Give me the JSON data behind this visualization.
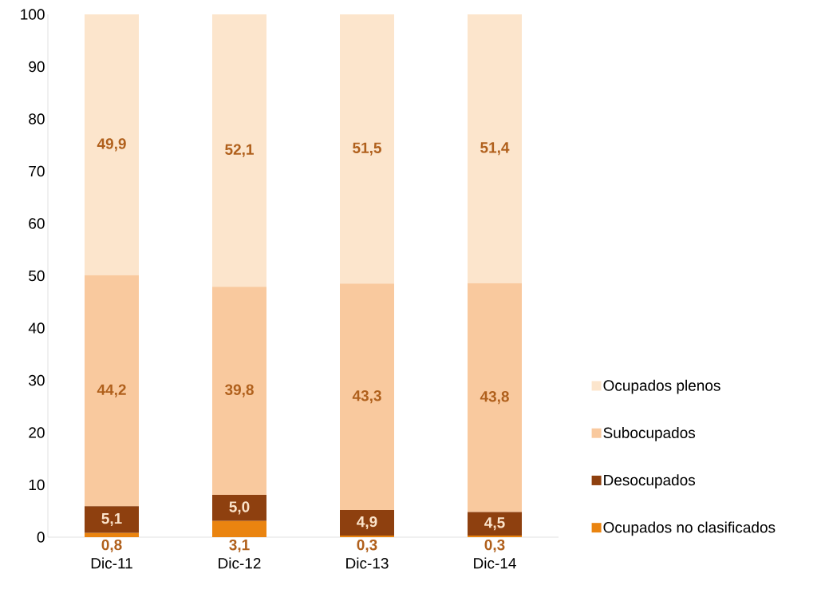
{
  "chart_data": {
    "type": "bar",
    "stacked": true,
    "categories": [
      "Dic-11",
      "Dic-12",
      "Dic-13",
      "Dic-14"
    ],
    "series": [
      {
        "name": "Ocupados no clasificados",
        "color": "#ea8410",
        "values": [
          0.8,
          3.1,
          0.3,
          0.3
        ],
        "value_labels": [
          "0,8",
          "3,1",
          "0,3",
          "0,3"
        ]
      },
      {
        "name": "Desocupados",
        "color": "#8e400f",
        "values": [
          5.1,
          5.0,
          4.9,
          4.5
        ],
        "value_labels": [
          "5,1",
          "5,0",
          "4,9",
          "4,5"
        ]
      },
      {
        "name": "Subocupados",
        "color": "#f9c99e",
        "values": [
          44.2,
          39.8,
          43.3,
          43.8
        ],
        "value_labels": [
          "44,2",
          "39,8",
          "43,3",
          "43,8"
        ]
      },
      {
        "name": "Ocupados plenos",
        "color": "#fce5cc",
        "values": [
          49.9,
          52.1,
          51.5,
          51.4
        ],
        "value_labels": [
          "49,9",
          "52,1",
          "51,5",
          "51,4"
        ]
      }
    ],
    "ylim": [
      0,
      100
    ],
    "yticks": [
      0,
      10,
      20,
      30,
      40,
      50,
      60,
      70,
      80,
      90,
      100
    ],
    "legend": "right",
    "grid": false
  }
}
